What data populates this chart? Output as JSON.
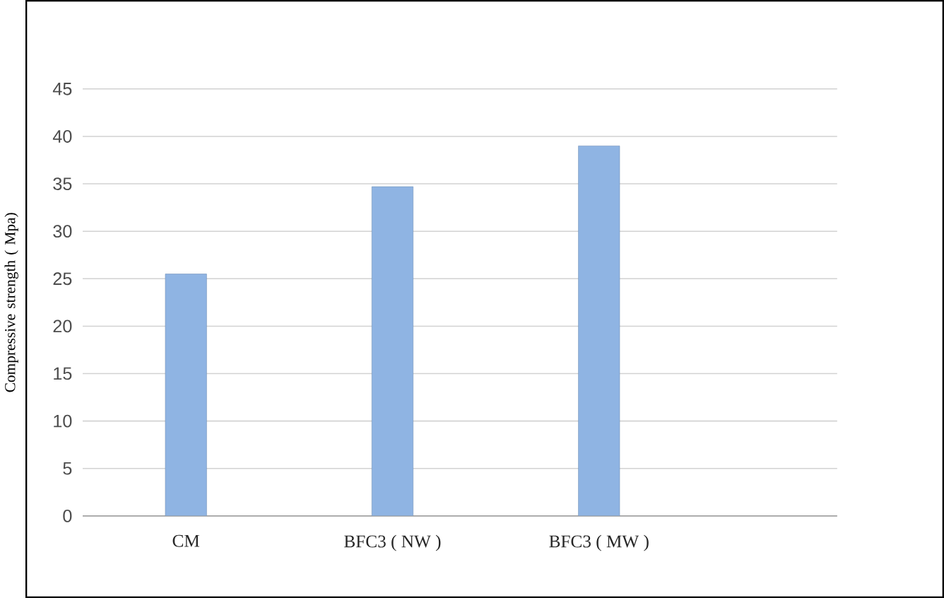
{
  "chart_data": {
    "type": "bar",
    "ylabel": "Compressive strength ( Mpa)",
    "categories": [
      "CM",
      "BFC3 ( NW )",
      "BFC3 ( MW )"
    ],
    "values": [
      25.5,
      34.7,
      39.0
    ],
    "color": "#8fb4e3",
    "ylim": [
      0,
      45
    ],
    "yticks": [
      0,
      5,
      10,
      15,
      20,
      25,
      30,
      35,
      40,
      45
    ],
    "grid": "y"
  }
}
